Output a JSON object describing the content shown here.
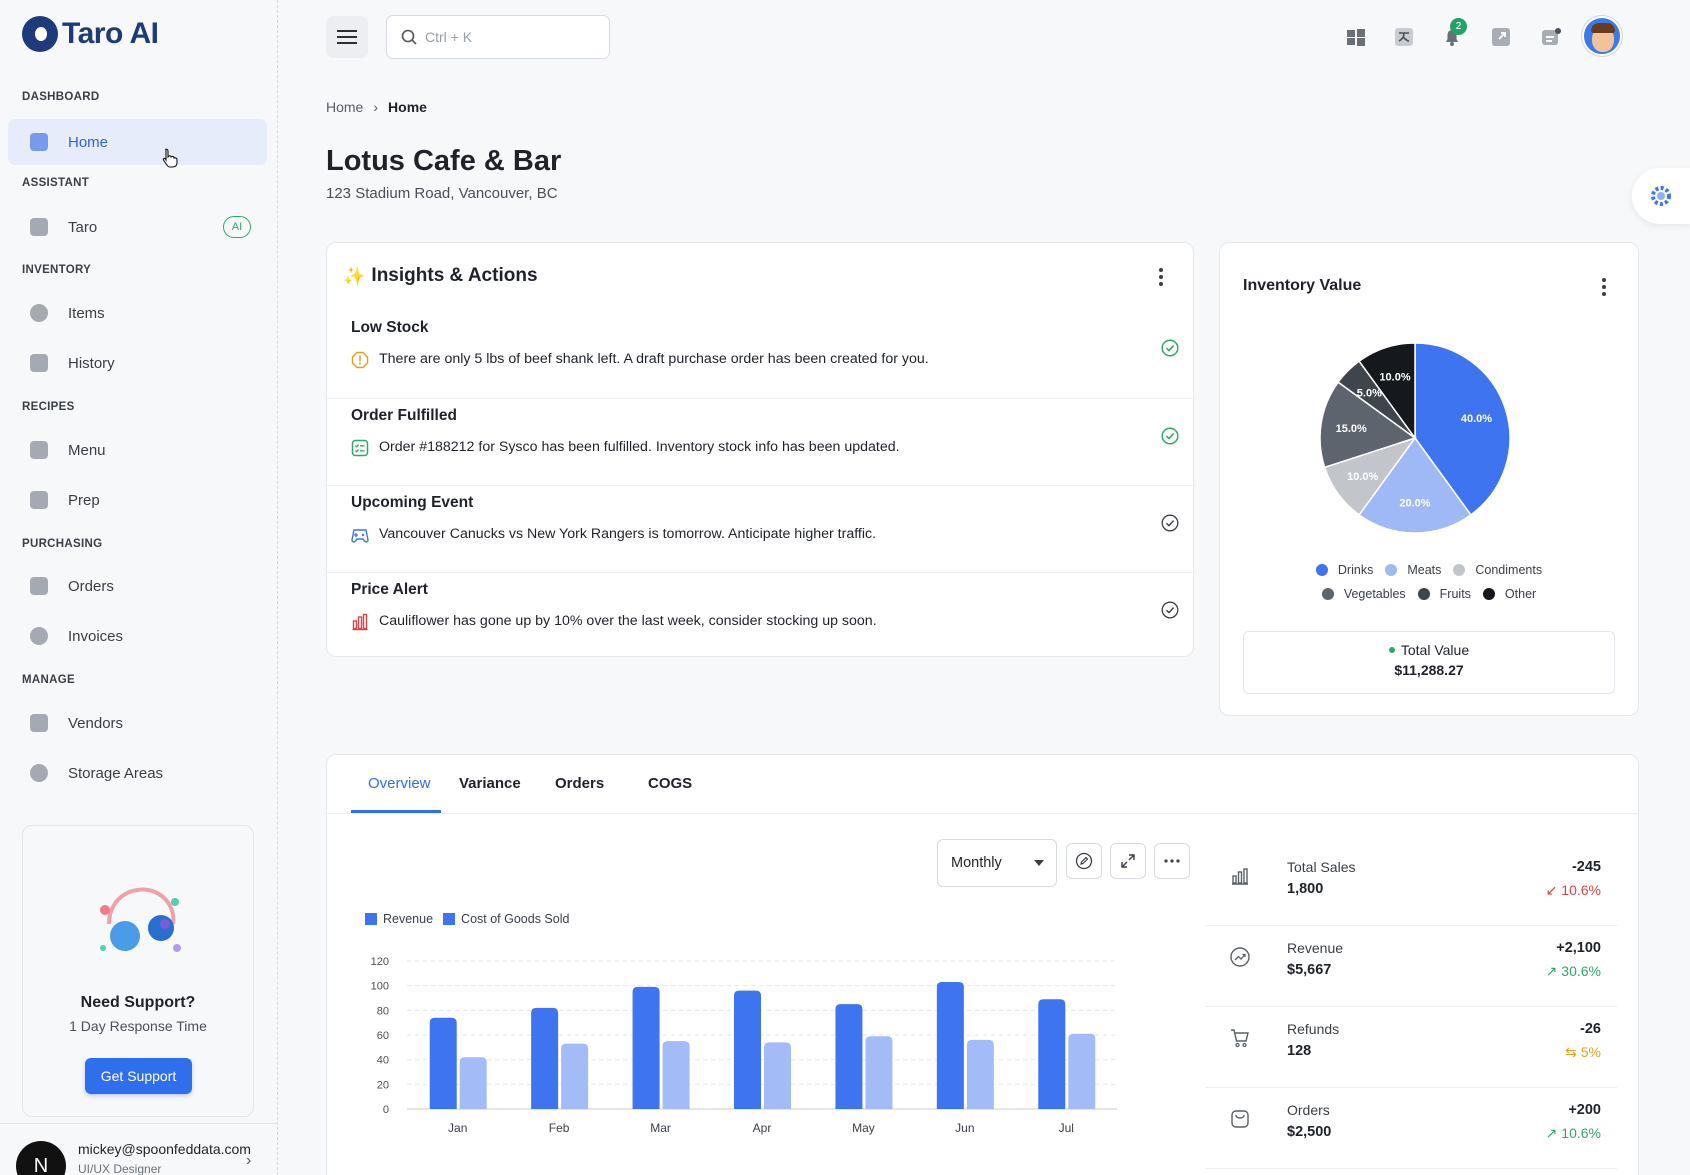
{
  "app": {
    "name": "Taro AI"
  },
  "sidebar": {
    "sections": [
      {
        "label": "DASHBOARD"
      },
      {
        "label": "ASSISTANT"
      },
      {
        "label": "INVENTORY"
      },
      {
        "label": "RECIPES"
      },
      {
        "label": "PURCHASING"
      },
      {
        "label": "MANAGE"
      }
    ],
    "items": [
      {
        "label": "Home",
        "icon": "home-icon"
      },
      {
        "label": "Taro",
        "icon": "sparkle-icon",
        "badge": "AI"
      },
      {
        "label": "Items",
        "icon": "items-icon"
      },
      {
        "label": "History",
        "icon": "history-icon"
      },
      {
        "label": "Menu",
        "icon": "menu-book-icon"
      },
      {
        "label": "Prep",
        "icon": "prep-icon"
      },
      {
        "label": "Orders",
        "icon": "orders-icon"
      },
      {
        "label": "Invoices",
        "icon": "invoices-icon"
      },
      {
        "label": "Vendors",
        "icon": "vendors-icon"
      },
      {
        "label": "Storage Areas",
        "icon": "storage-icon"
      }
    ],
    "support": {
      "title": "Need Support?",
      "subtitle": "1 Day Response Time",
      "button": "Get Support"
    },
    "user": {
      "initial": "N",
      "email": "mickey@spoonfeddata.com",
      "role": "UI/UX Designer"
    }
  },
  "topbar": {
    "search_placeholder": "Ctrl + K",
    "notification_count": "2"
  },
  "breadcrumb": {
    "root": "Home",
    "current": "Home"
  },
  "page": {
    "title": "Lotus Cafe & Bar",
    "address": "123 Stadium Road, Vancouver, BC"
  },
  "insights": {
    "title": "Insights & Actions",
    "items": [
      {
        "title": "Low Stock",
        "text": "There are only 5 lbs of beef shank left. A draft purchase order has been created for you.",
        "icon": "warning-icon",
        "done": true
      },
      {
        "title": "Order Fulfilled",
        "text": "Order #188212 for Sysco has been fulfilled. Inventory stock info has been updated.",
        "icon": "receipt-icon",
        "done": true
      },
      {
        "title": "Upcoming Event",
        "text": "Vancouver Canucks vs New York Rangers is tomorrow. Anticipate higher traffic.",
        "icon": "gamepad-icon",
        "done": false
      },
      {
        "title": "Price Alert",
        "text": "Cauliflower has gone up by 10% over the last week, consider stocking up soon.",
        "icon": "bar-chart-icon",
        "done": false
      }
    ]
  },
  "inventory": {
    "title": "Inventory Value",
    "total_label": "Total Value",
    "total_value": "$11,288.27"
  },
  "tabs": [
    {
      "label": "Overview",
      "active": true
    },
    {
      "label": "Variance"
    },
    {
      "label": "Orders"
    },
    {
      "label": "COGS"
    }
  ],
  "controls": {
    "period": "Monthly"
  },
  "kpis": [
    {
      "label": "Total Sales",
      "value": "1,800",
      "delta": "-245",
      "pct": "10.6%",
      "trend": "down",
      "color": "#d64545",
      "arrow": "↙",
      "icon": "bars-icon"
    },
    {
      "label": "Revenue",
      "value": "$5,667",
      "delta": "+2,100",
      "pct": "30.6%",
      "trend": "up",
      "color": "#2fa86a",
      "arrow": "↗",
      "icon": "trend-icon"
    },
    {
      "label": "Refunds",
      "value": "128",
      "delta": "-26",
      "pct": "5%",
      "trend": "flat",
      "color": "#e0a21b",
      "arrow": "⇆",
      "icon": "cart-icon"
    },
    {
      "label": "Orders",
      "value": "$2,500",
      "delta": "+200",
      "pct": "10.6%",
      "trend": "up",
      "color": "#2fa86a",
      "arrow": "↗",
      "icon": "bag-icon"
    }
  ],
  "chart_data": [
    {
      "type": "pie",
      "title": "Inventory Value",
      "categories": [
        "Drinks",
        "Meats",
        "Condiments",
        "Vegetables",
        "Fruits",
        "Other"
      ],
      "values": [
        40,
        20,
        10,
        15,
        5,
        10
      ],
      "labels": [
        "40.0%",
        "20.0%",
        "10.0%",
        "15.0%",
        "5.0%",
        "10.0%"
      ],
      "colors": [
        "#3e74f0",
        "#9fb8f6",
        "#c2c6cb",
        "#5d646d",
        "#3f454d",
        "#15181c"
      ],
      "legend": "bottom"
    },
    {
      "type": "bar",
      "categories": [
        "Jan",
        "Feb",
        "Mar",
        "Apr",
        "May",
        "Jun",
        "Jul"
      ],
      "series": [
        {
          "name": "Revenue",
          "values": [
            74,
            82,
            99,
            96,
            85,
            103,
            89
          ],
          "color": "#3e74f0"
        },
        {
          "name": "Cost of Goods Sold",
          "values": [
            42,
            53,
            55,
            54,
            59,
            56,
            61
          ],
          "color": "#a3bcf7"
        }
      ],
      "yticks": [
        0,
        20,
        40,
        60,
        80,
        100,
        120
      ],
      "ylim": [
        0,
        120
      ],
      "grid": true,
      "legend": "top-left"
    }
  ]
}
